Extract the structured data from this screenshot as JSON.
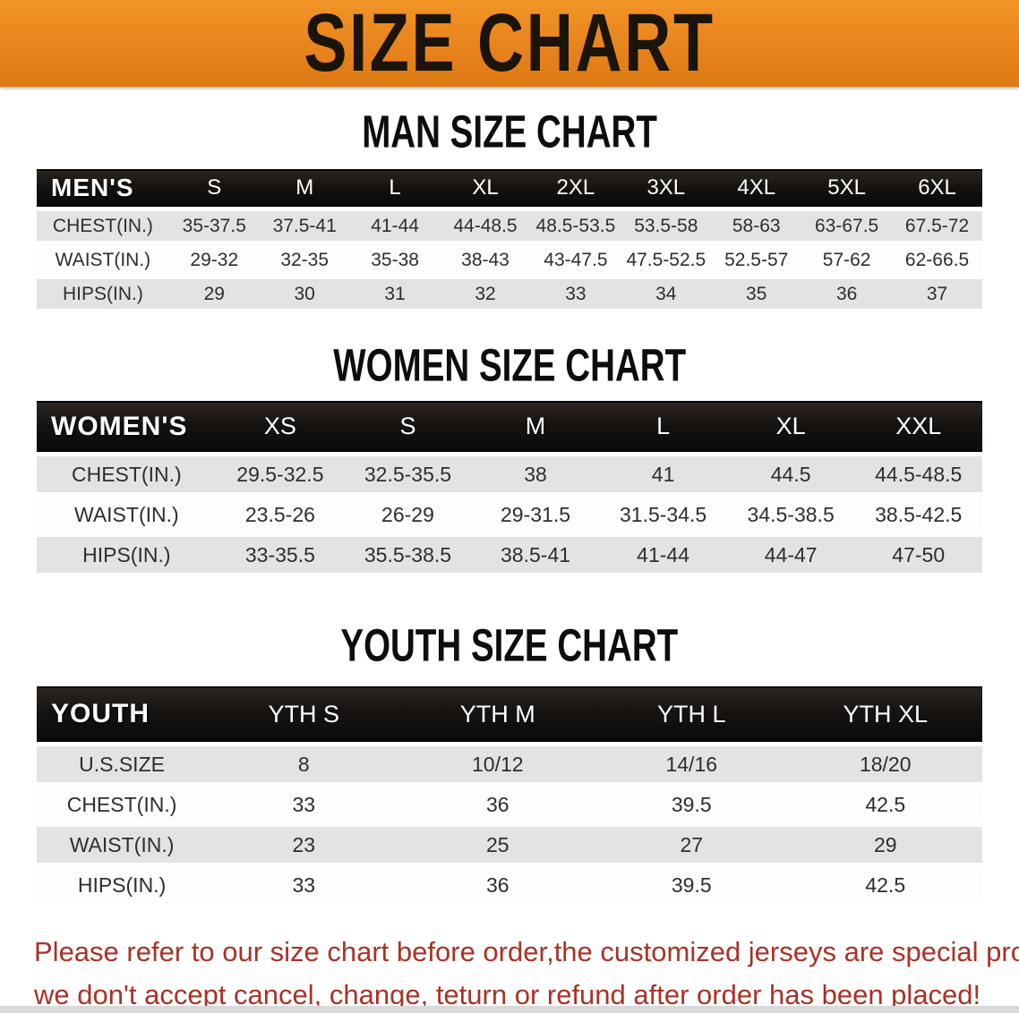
{
  "colors": {
    "banner-orange": "#E8831D",
    "banner-orange-light": "#F29426",
    "banner-orange-dark": "#DE7A12",
    "header-black": "#161311",
    "row-gray": "#E3E3E3",
    "warning-red": "#A93226"
  },
  "banner": {
    "title": "SIZE CHART"
  },
  "sections": [
    {
      "heading": "MAN SIZE CHART",
      "header_label": "MEN'S",
      "columns": [
        "S",
        "M",
        "L",
        "XL",
        "2XL",
        "3XL",
        "4XL",
        "5XL",
        "6XL"
      ],
      "rows": [
        {
          "label": "CHEST(IN.)",
          "values": [
            "35-37.5",
            "37.5-41",
            "41-44",
            "44-48.5",
            "48.5-53.5",
            "53.5-58",
            "58-63",
            "63-67.5",
            "67.5-72"
          ]
        },
        {
          "label": "WAIST(IN.)",
          "values": [
            "29-32",
            "32-35",
            "35-38",
            "38-43",
            "43-47.5",
            "47.5-52.5",
            "52.5-57",
            "57-62",
            "62-66.5"
          ]
        },
        {
          "label": "HIPS(IN.)",
          "values": [
            "29",
            "30",
            "31",
            "32",
            "33",
            "34",
            "35",
            "36",
            "37"
          ]
        }
      ]
    },
    {
      "heading": "WOMEN SIZE CHART",
      "header_label": "WOMEN'S",
      "columns": [
        "XS",
        "S",
        "M",
        "L",
        "XL",
        "XXL"
      ],
      "rows": [
        {
          "label": "CHEST(IN.)",
          "values": [
            "29.5-32.5",
            "32.5-35.5",
            "38",
            "41",
            "44.5",
            "44.5-48.5"
          ]
        },
        {
          "label": "WAIST(IN.)",
          "values": [
            "23.5-26",
            "26-29",
            "29-31.5",
            "31.5-34.5",
            "34.5-38.5",
            "38.5-42.5"
          ]
        },
        {
          "label": "HIPS(IN.)",
          "values": [
            "33-35.5",
            "35.5-38.5",
            "38.5-41",
            "41-44",
            "44-47",
            "47-50"
          ]
        }
      ]
    },
    {
      "heading": "YOUTH SIZE CHART",
      "header_label": "YOUTH",
      "columns": [
        "YTH S",
        "YTH M",
        "YTH L",
        "YTH XL"
      ],
      "rows": [
        {
          "label": "U.S.SIZE",
          "values": [
            "8",
            "10/12",
            "14/16",
            "18/20"
          ]
        },
        {
          "label": "CHEST(IN.)",
          "values": [
            "33",
            "36",
            "39.5",
            "42.5"
          ]
        },
        {
          "label": "WAIST(IN.)",
          "values": [
            "23",
            "25",
            "27",
            "29"
          ]
        },
        {
          "label": "HIPS(IN.)",
          "values": [
            "33",
            "36",
            "39.5",
            "42.5"
          ]
        }
      ]
    }
  ],
  "disclaimer": {
    "lines": [
      "Please refer to our size chart before order,the customized jerseys are special products,",
      "we don't accept cancel, change, teturn or refund after order has been placed!"
    ]
  }
}
